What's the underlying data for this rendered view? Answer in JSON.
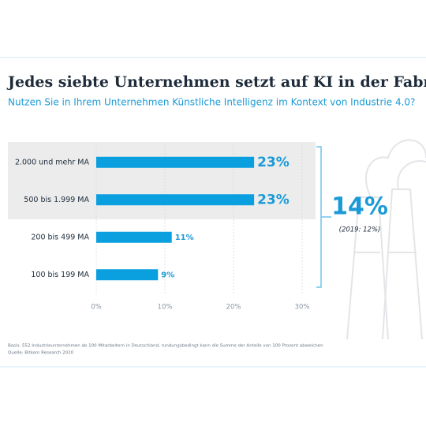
{
  "chart_data": {
    "type": "bar",
    "orientation": "horizontal",
    "title": "Jedes siebte Unternehmen setzt auf KI in der Fabrik",
    "subtitle": "Nutzen Sie in Ihrem Unternehmen Künstliche Intelligenz im Kontext von Industrie 4.0?",
    "categories": [
      "2.000 und mehr MA",
      "500 bis 1.999 MA",
      "200 bis 499 MA",
      "100 bis 199 MA"
    ],
    "values": [
      23,
      23,
      11,
      9
    ],
    "value_labels": [
      "23%",
      "23%",
      "11%",
      "9%"
    ],
    "color": "#0a9fdf",
    "xlim": [
      0,
      30
    ],
    "xticks": [
      {
        "value": 0,
        "label": "0%"
      },
      {
        "value": 10,
        "label": "10%"
      },
      {
        "value": 20,
        "label": "20%"
      },
      {
        "value": 30,
        "label": "30%"
      }
    ],
    "grid": true,
    "annotations": [
      "14%",
      "(2019: 12%)"
    ],
    "footnotes": [
      "Basis: 552 Industrieunternehmen ab 100 Mitarbeitern in Deutschland, rundungsbedingt kann die Summe der Anteile von 100 Prozent abweichen",
      "Quelle: Bitkom Research 2020"
    ]
  }
}
